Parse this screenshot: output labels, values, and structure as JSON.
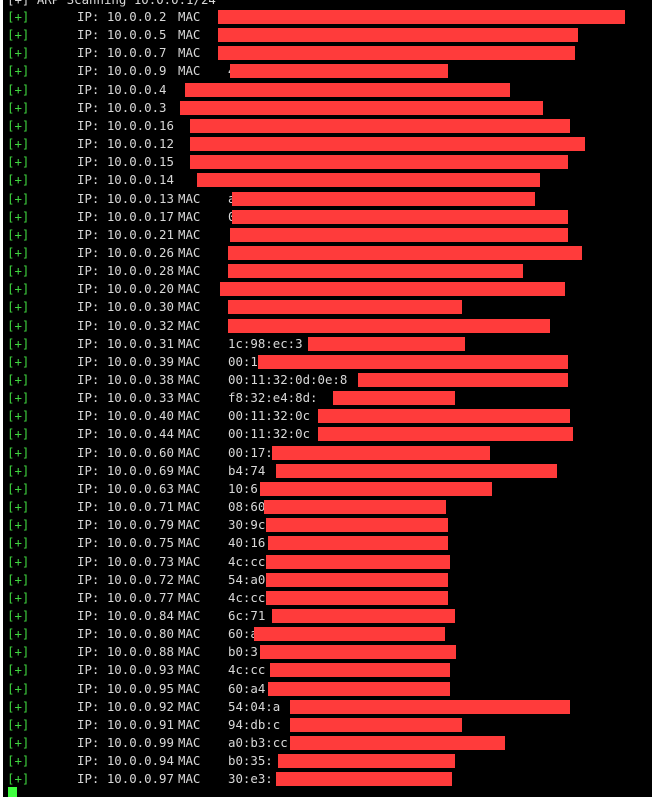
{
  "terminal": {
    "header": "[+] ARP Scanning 10.0.0.1/24",
    "rows": [
      {
        "marker": "[+]",
        "ip": "IP: 10.0.0.2",
        "mac_label": "MAC",
        "mac_prefix": ""
      },
      {
        "marker": "[+]",
        "ip": "IP: 10.0.0.5",
        "mac_label": "MAC",
        "mac_prefix": ""
      },
      {
        "marker": "[+]",
        "ip": "IP: 10.0.0.7",
        "mac_label": "MAC",
        "mac_prefix": ""
      },
      {
        "marker": "[+]",
        "ip": "IP: 10.0.0.9",
        "mac_label": "MAC",
        "mac_prefix": "4"
      },
      {
        "marker": "[+]",
        "ip": "IP: 10.0.0.4",
        "mac_label": "",
        "mac_prefix": ""
      },
      {
        "marker": "[+]",
        "ip": "IP: 10.0.0.3",
        "mac_label": "",
        "mac_prefix": ""
      },
      {
        "marker": "[+]",
        "ip": "IP: 10.0.0.16",
        "mac_label": "",
        "mac_prefix": ""
      },
      {
        "marker": "[+]",
        "ip": "IP: 10.0.0.12",
        "mac_label": "",
        "mac_prefix": ""
      },
      {
        "marker": "[+]",
        "ip": "IP: 10.0.0.15",
        "mac_label": "",
        "mac_prefix": ""
      },
      {
        "marker": "[+]",
        "ip": "IP: 10.0.0.14",
        "mac_label": "",
        "mac_prefix": ""
      },
      {
        "marker": "[+]",
        "ip": "IP: 10.0.0.13",
        "mac_label": "MAC",
        "mac_prefix": "a"
      },
      {
        "marker": "[+]",
        "ip": "IP: 10.0.0.17",
        "mac_label": "MAC",
        "mac_prefix": "0"
      },
      {
        "marker": "[+]",
        "ip": "IP: 10.0.0.21",
        "mac_label": "MAC",
        "mac_prefix": ""
      },
      {
        "marker": "[+]",
        "ip": "IP: 10.0.0.26",
        "mac_label": "MAC",
        "mac_prefix": ""
      },
      {
        "marker": "[+]",
        "ip": "IP: 10.0.0.28",
        "mac_label": "MAC",
        "mac_prefix": ""
      },
      {
        "marker": "[+]",
        "ip": "IP: 10.0.0.20",
        "mac_label": "MAC",
        "mac_prefix": ""
      },
      {
        "marker": "[+]",
        "ip": "IP: 10.0.0.30",
        "mac_label": "MAC",
        "mac_prefix": ""
      },
      {
        "marker": "[+]",
        "ip": "IP: 10.0.0.32",
        "mac_label": "MAC",
        "mac_prefix": ""
      },
      {
        "marker": "[+]",
        "ip": "IP: 10.0.0.31",
        "mac_label": "MAC",
        "mac_prefix": "1c:98:ec:3"
      },
      {
        "marker": "[+]",
        "ip": "IP: 10.0.0.39",
        "mac_label": "MAC",
        "mac_prefix": "00:1"
      },
      {
        "marker": "[+]",
        "ip": "IP: 10.0.0.38",
        "mac_label": "MAC",
        "mac_prefix": "00:11:32:0d:0e:8"
      },
      {
        "marker": "[+]",
        "ip": "IP: 10.0.0.33",
        "mac_label": "MAC",
        "mac_prefix": "f8:32:e4:8d:"
      },
      {
        "marker": "[+]",
        "ip": "IP: 10.0.0.40",
        "mac_label": "MAC",
        "mac_prefix": "00:11:32:0c"
      },
      {
        "marker": "[+]",
        "ip": "IP: 10.0.0.44",
        "mac_label": "MAC",
        "mac_prefix": "00:11:32:0c"
      },
      {
        "marker": "[+]",
        "ip": "IP: 10.0.0.60",
        "mac_label": "MAC",
        "mac_prefix": "00:17:"
      },
      {
        "marker": "[+]",
        "ip": "IP: 10.0.0.69",
        "mac_label": "MAC",
        "mac_prefix": "b4:74"
      },
      {
        "marker": "[+]",
        "ip": "IP: 10.0.0.63",
        "mac_label": "MAC",
        "mac_prefix": "10:6"
      },
      {
        "marker": "[+]",
        "ip": "IP: 10.0.0.71",
        "mac_label": "MAC",
        "mac_prefix": "08:60"
      },
      {
        "marker": "[+]",
        "ip": "IP: 10.0.0.79",
        "mac_label": "MAC",
        "mac_prefix": "30:9c"
      },
      {
        "marker": "[+]",
        "ip": "IP: 10.0.0.75",
        "mac_label": "MAC",
        "mac_prefix": "40:16"
      },
      {
        "marker": "[+]",
        "ip": "IP: 10.0.0.73",
        "mac_label": "MAC",
        "mac_prefix": "4c:cc"
      },
      {
        "marker": "[+]",
        "ip": "IP: 10.0.0.72",
        "mac_label": "MAC",
        "mac_prefix": "54:a0"
      },
      {
        "marker": "[+]",
        "ip": "IP: 10.0.0.77",
        "mac_label": "MAC",
        "mac_prefix": "4c:cc"
      },
      {
        "marker": "[+]",
        "ip": "IP: 10.0.0.84",
        "mac_label": "MAC",
        "mac_prefix": "6c:71"
      },
      {
        "marker": "[+]",
        "ip": "IP: 10.0.0.80",
        "mac_label": "MAC",
        "mac_prefix": "60:a"
      },
      {
        "marker": "[+]",
        "ip": "IP: 10.0.0.88",
        "mac_label": "MAC",
        "mac_prefix": "b0:3"
      },
      {
        "marker": "[+]",
        "ip": "IP: 10.0.0.93",
        "mac_label": "MAC",
        "mac_prefix": "4c:cc"
      },
      {
        "marker": "[+]",
        "ip": "IP: 10.0.0.95",
        "mac_label": "MAC",
        "mac_prefix": "60:a4"
      },
      {
        "marker": "[+]",
        "ip": "IP: 10.0.0.92",
        "mac_label": "MAC",
        "mac_prefix": "54:04:a"
      },
      {
        "marker": "[+]",
        "ip": "IP: 10.0.0.91",
        "mac_label": "MAC",
        "mac_prefix": "94:db:c"
      },
      {
        "marker": "[+]",
        "ip": "IP: 10.0.0.99",
        "mac_label": "MAC",
        "mac_prefix": "a0:b3:cc"
      },
      {
        "marker": "[+]",
        "ip": "IP: 10.0.0.94",
        "mac_label": "MAC",
        "mac_prefix": "b0:35:"
      },
      {
        "marker": "[+]",
        "ip": "IP: 10.0.0.97",
        "mac_label": "MAC",
        "mac_prefix": "30:e3:"
      }
    ],
    "colors": {
      "background": "#000000",
      "text": "#d8d8d8",
      "marker": "#3fd43f",
      "redaction": "#ff3b3b",
      "cursor": "#3fff3f"
    }
  }
}
